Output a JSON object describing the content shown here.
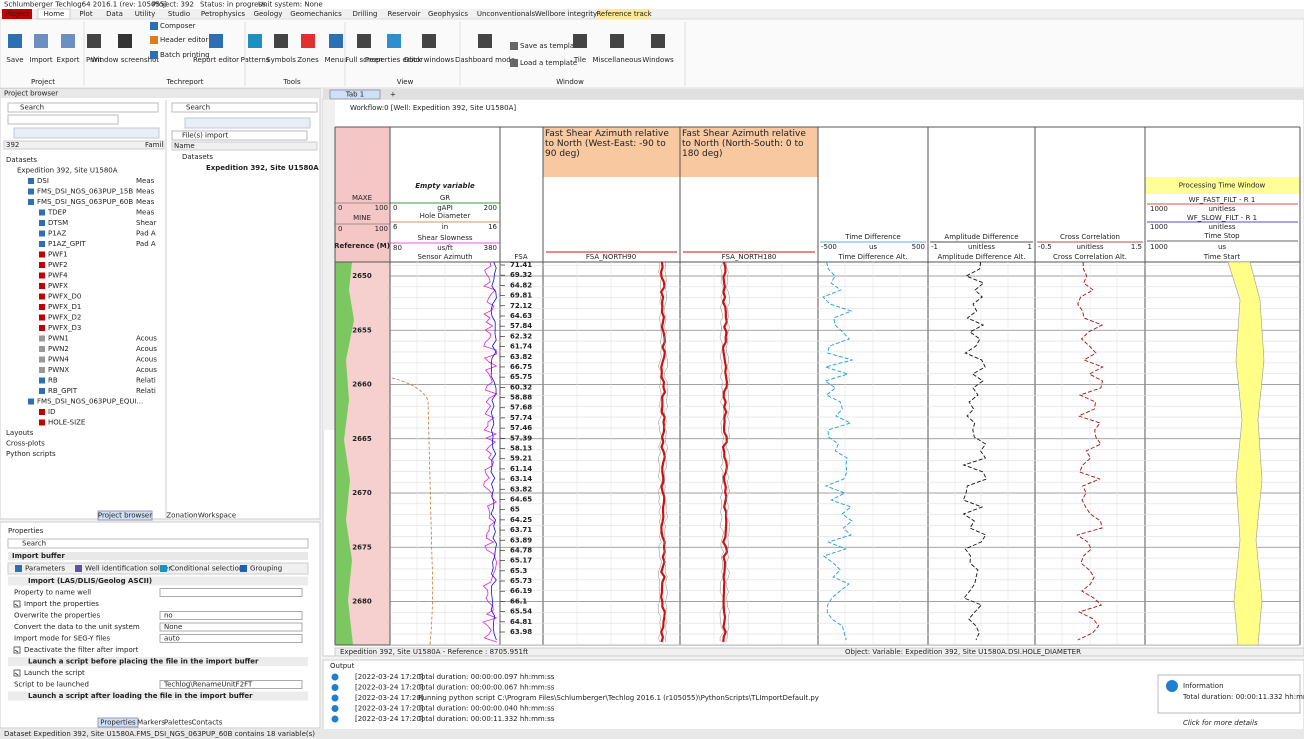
{
  "title_bar": {
    "app": "Schlumberger Techlog64 2016.1 (rev: 105055)",
    "project": "Project: 392",
    "status": "Status: in progress",
    "units": "Unit system: None"
  },
  "menu_tabs": [
    "Project",
    "Home",
    "Plot",
    "Data",
    "Utility",
    "Studio",
    "Petrophysics",
    "Geology",
    "Geomechanics",
    "Drilling",
    "Reservoir",
    "Geophysics",
    "Unconventionals",
    "Wellbore integrity",
    "Reference track"
  ],
  "ribbon": {
    "buttons": [
      "Save",
      "Import",
      "Export",
      "Print",
      "Window screenshot",
      "Composer",
      "Header editor",
      "Batch printing",
      "Report editor",
      "Patterns",
      "Symbols",
      "Zones",
      "Menus",
      "Full screen",
      "Properties editor",
      "Dock windows",
      "Dashboard mode",
      "Save as template",
      "Load a template",
      "Tile",
      "Miscellaneous",
      "Windows"
    ],
    "groups": [
      "Project",
      "Techreport",
      "Tools",
      "View",
      "Window"
    ]
  },
  "project_browser": {
    "title": "Project browser",
    "search": "Search",
    "filter": "392",
    "column": "Famil",
    "tree": [
      {
        "label": "Datasets",
        "children": [
          {
            "label": "Expedition 392, Site U1580A",
            "children": [
              {
                "label": "DSI",
                "family": "Meas"
              },
              {
                "label": "FMS_DSI_NGS_063PUP_15B",
                "family": "Meas"
              },
              {
                "label": "FMS_DSI_NGS_063PUP_60B",
                "family": "Meas",
                "children": [
                  {
                    "label": "TDEP",
                    "family": "Meas"
                  },
                  {
                    "label": "DTSM",
                    "family": "Shear"
                  },
                  {
                    "label": "P1AZ",
                    "family": "Pad A"
                  },
                  {
                    "label": "P1AZ_GPIT",
                    "family": "Pad A"
                  },
                  {
                    "label": "PWF1",
                    "color": "#c00000"
                  },
                  {
                    "label": "PWF2",
                    "color": "#c00000"
                  },
                  {
                    "label": "PWF4",
                    "color": "#c00000"
                  },
                  {
                    "label": "PWFX",
                    "color": "#c00000"
                  },
                  {
                    "label": "PWFX_D0",
                    "color": "#c00000"
                  },
                  {
                    "label": "PWFX_D1",
                    "color": "#c00000"
                  },
                  {
                    "label": "PWFX_D2",
                    "color": "#c00000"
                  },
                  {
                    "label": "PWFX_D3",
                    "color": "#c00000"
                  },
                  {
                    "label": "PWN1",
                    "family": "Acous",
                    "color": "#999999"
                  },
                  {
                    "label": "PWN2",
                    "family": "Acous",
                    "color": "#999999"
                  },
                  {
                    "label": "PWN4",
                    "family": "Acous",
                    "color": "#999999"
                  },
                  {
                    "label": "PWNX",
                    "family": "Acous",
                    "color": "#999999"
                  },
                  {
                    "label": "RB",
                    "family": "Relati"
                  },
                  {
                    "label": "RB_GPIT",
                    "family": "Relati"
                  }
                ]
              },
              {
                "label": "FMS_DSI_NGS_063PUP_EQUI...",
                "children": [
                  {
                    "label": "ID",
                    "color": "#c00000"
                  },
                  {
                    "label": "HOLE-SIZE",
                    "color": "#c00000"
                  }
                ]
              }
            ]
          }
        ]
      },
      {
        "label": "Layouts"
      },
      {
        "label": "Cross-plots"
      },
      {
        "label": "Python scripts"
      }
    ],
    "import_pane": {
      "search": "Search",
      "source": "File(s) import",
      "column": "Name",
      "root": "Datasets",
      "well": "Expedition 392, Site U1580A"
    },
    "tabs": [
      "Project browser",
      "Zonation",
      "Workspace"
    ]
  },
  "properties": {
    "title": "Properties",
    "search": "Search",
    "buffer": "Import buffer",
    "tabs": [
      "Parameters",
      "Well identification solver",
      "Conditional selection",
      "Grouping"
    ],
    "rows": [
      {
        "label": "Import (LAS/DLIS/Geolog ASCII)",
        "kind": "section"
      },
      {
        "label": "Property to name well",
        "kind": "field",
        "value": ""
      },
      {
        "label": "Import the properties",
        "kind": "check"
      },
      {
        "label": "Overwrite the properties",
        "kind": "field",
        "value": "no"
      },
      {
        "label": "Convert the data to the unit system",
        "kind": "field",
        "value": "None"
      },
      {
        "label": "Import mode for SEG-Y files",
        "kind": "field",
        "value": "auto"
      },
      {
        "label": "Deactivate the filter after import",
        "kind": "check"
      },
      {
        "label": "Launch a script before placing the file in the import buffer",
        "kind": "section"
      },
      {
        "label": "Launch the script",
        "kind": "check"
      },
      {
        "label": "Script to be launched",
        "kind": "field",
        "value": "Techlog\\RenameUnitF2FT"
      },
      {
        "label": "Launch a script after loading the file in the import buffer",
        "kind": "section"
      }
    ],
    "bottom_tabs": [
      "Properties",
      "Markers",
      "Palettes",
      "Contacts"
    ]
  },
  "status_bar": "Dataset Expedition 392, Site U1580A.FMS_DSI_NGS_063PUP_60B contains 18 variable(s)",
  "workspace": {
    "tab": "Tab 1",
    "plus": "+",
    "workflow": "Workflow:0 [Well: Expedition 392, Site U1580A]",
    "depth_track": {
      "maxe": "MAXE",
      "maxe_min": 0,
      "maxe_max": 100,
      "mine": "MINE",
      "mine_min": 0,
      "mine_max": 100,
      "reference": "Reference (M)",
      "depths": [
        2650,
        2655,
        2660,
        2665,
        2670,
        2675,
        2680
      ]
    },
    "gr_track": {
      "empty": "Empty variable",
      "gr": "GR",
      "gr_min": 0,
      "gr_unit": "gAPI",
      "gr_max": 200,
      "hd": "Hole Diameter",
      "hd_min": 6,
      "hd_unit": "in",
      "hd_max": 16,
      "ss": "Shear Slowness",
      "ss_min": 80,
      "ss_unit": "us/ft",
      "ss_max": 380,
      "sa": "Sensor Azimuth"
    },
    "fsa_track": {
      "name": "FSA",
      "values": [
        71.41,
        69.32,
        64.82,
        69.81,
        72.12,
        64.63,
        57.84,
        62.32,
        61.74,
        63.82,
        66.75,
        65.75,
        60.32,
        58.88,
        57.68,
        57.74,
        57.46,
        57.39,
        58.13,
        59.21,
        61.14,
        63.14,
        63.82,
        64.65,
        65,
        64.25,
        63.71,
        63.89,
        64.78,
        65.17,
        65.3,
        65.73,
        66.19,
        66.1,
        65.54,
        64.81,
        63.98
      ]
    },
    "n90_track": {
      "title": "Fast Shear Azimuth relative to North (West-East: -90 to 90 deg)",
      "name": "FSA_NORTH90"
    },
    "n180_track": {
      "title": "Fast Shear Azimuth relative to North (North-South: 0 to 180 deg)",
      "name": "FSA_NORTH180"
    },
    "td_track": {
      "name": "Time Difference",
      "min": -500,
      "unit": "us",
      "max": 500,
      "alt": "Time Difference Alt."
    },
    "ad_track": {
      "name": "Amplitude Difference",
      "min": -1,
      "unit": "unitless",
      "max": 1,
      "alt": "Amplitude Difference Alt."
    },
    "cc_track": {
      "name": "Cross Correlation",
      "min": -0.5,
      "unit": "unitless",
      "max": 1.5,
      "alt": "Cross Correlation Alt."
    },
    "pt_track": {
      "title": "Processing Time Window",
      "fast": "WF_FAST_FILT - R 1",
      "fast_val": 1000,
      "fast_unit": "unitless",
      "slow": "WF_SLOW_FILT - R 1",
      "slow_val": 1000,
      "slow_unit": "unitless",
      "stop": "Time Stop",
      "stop_val": 1000,
      "stop_unit": "us",
      "start": "Time Start"
    },
    "footer_left": "Expedition 392, Site U1580A - Reference : 8705.951ft",
    "footer_right": "Object: Variable: Expedition 392, Site U1580A.DSI.HOLE_DIAMETER"
  },
  "output": {
    "title": "Output",
    "rows": [
      [
        "[2022-03-24 17:20]",
        "Total duration: 00:00:00.097 hh:mm:ss"
      ],
      [
        "[2022-03-24 17:20]",
        "Total duration: 00:00:00.067 hh:mm:ss"
      ],
      [
        "[2022-03-24 17:20]",
        "Running python script C:\\Program Files\\Schlumberger\\Techlog 2016.1 (r105055)\\PythonScripts\\TLImportDefault.py"
      ],
      [
        "[2022-03-24 17:20]",
        "Total duration: 00:00:00.040 hh:mm:ss"
      ],
      [
        "[2022-03-24 17:20]",
        "Total duration: 00:00:11.332 hh:mm:ss"
      ]
    ],
    "info_title": "Information",
    "info_text": "Total duration: 00:00:11.332 hh:mm:ss",
    "info_link": "Click for more details"
  }
}
